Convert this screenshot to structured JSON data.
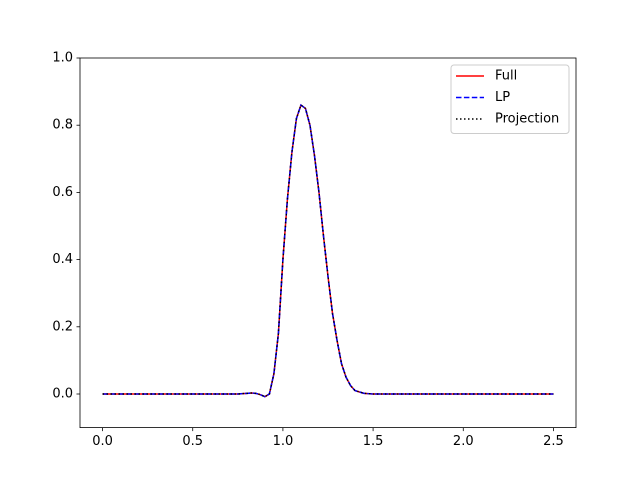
{
  "chart_data": {
    "type": "line",
    "x": [
      0,
      0.1,
      0.2,
      0.3,
      0.4,
      0.5,
      0.6,
      0.7,
      0.75,
      0.8,
      0.825,
      0.85,
      0.875,
      0.9,
      0.925,
      0.95,
      0.975,
      1.0,
      1.025,
      1.05,
      1.075,
      1.1,
      1.125,
      1.15,
      1.175,
      1.2,
      1.225,
      1.25,
      1.275,
      1.3,
      1.325,
      1.35,
      1.375,
      1.4,
      1.45,
      1.5,
      1.6,
      1.8,
      2.0,
      2.2,
      2.4,
      2.5
    ],
    "series": [
      {
        "name": "Full",
        "color": "#ff0000",
        "linestyle": "solid",
        "values": [
          0,
          0,
          0,
          0,
          0,
          0,
          0,
          0,
          0,
          0.002,
          0.003,
          0.002,
          -0.002,
          -0.008,
          0.0,
          0.06,
          0.18,
          0.4,
          0.58,
          0.72,
          0.82,
          0.86,
          0.85,
          0.8,
          0.71,
          0.6,
          0.47,
          0.35,
          0.24,
          0.16,
          0.09,
          0.05,
          0.025,
          0.01,
          0.002,
          0,
          0,
          0,
          0,
          0,
          0,
          0
        ]
      },
      {
        "name": "LP",
        "color": "#0000ff",
        "linestyle": "dashed",
        "values": [
          0,
          0,
          0,
          0,
          0,
          0,
          0,
          0,
          0,
          0.002,
          0.003,
          0.002,
          -0.002,
          -0.008,
          0.0,
          0.06,
          0.18,
          0.4,
          0.58,
          0.72,
          0.82,
          0.86,
          0.85,
          0.8,
          0.71,
          0.6,
          0.47,
          0.35,
          0.24,
          0.16,
          0.09,
          0.05,
          0.025,
          0.01,
          0.002,
          0,
          0,
          0,
          0,
          0,
          0,
          0
        ]
      },
      {
        "name": "Projection",
        "color": "#000000",
        "linestyle": "dotted",
        "values": [
          0,
          0,
          0,
          0,
          0,
          0,
          0,
          0,
          0,
          0.002,
          0.003,
          0.002,
          -0.002,
          -0.008,
          0.0,
          0.06,
          0.18,
          0.4,
          0.58,
          0.72,
          0.82,
          0.86,
          0.85,
          0.8,
          0.71,
          0.6,
          0.47,
          0.35,
          0.24,
          0.16,
          0.09,
          0.05,
          0.025,
          0.01,
          0.002,
          0,
          0,
          0,
          0,
          0,
          0,
          0
        ]
      }
    ],
    "xlim": [
      -0.125,
      2.625
    ],
    "ylim": [
      -0.1,
      1.0
    ],
    "xticks": [
      {
        "value": 0,
        "label": "0.0"
      },
      {
        "value": 0.5,
        "label": "0.5"
      },
      {
        "value": 1,
        "label": "1.0"
      },
      {
        "value": 1.5,
        "label": "1.5"
      },
      {
        "value": 2,
        "label": "2.0"
      },
      {
        "value": 2.5,
        "label": "2.5"
      }
    ],
    "yticks": [
      {
        "value": 0,
        "label": "0.0"
      },
      {
        "value": 0.2,
        "label": "0.2"
      },
      {
        "value": 0.4,
        "label": "0.4"
      },
      {
        "value": 0.6,
        "label": "0.6"
      },
      {
        "value": 0.8,
        "label": "0.8"
      },
      {
        "value": 1,
        "label": "1.0"
      }
    ],
    "grid": false,
    "legend": "upper right"
  }
}
